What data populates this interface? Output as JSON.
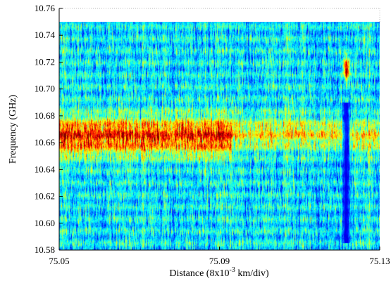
{
  "chart_data": {
    "type": "heatmap",
    "title": "",
    "xlabel": {
      "pre": "Distance (8x10",
      "sup": "-3",
      "post": " km/div)"
    },
    "ylabel": "Frequency (GHz)",
    "xlim": [
      75.05,
      75.13
    ],
    "ylim": [
      10.58,
      10.76
    ],
    "data_ylim": [
      10.58,
      10.75
    ],
    "x_ticks": [
      "75.05",
      "75.09",
      "75.13"
    ],
    "y_ticks": [
      "10.58",
      "10.60",
      "10.62",
      "10.64",
      "10.66",
      "10.68",
      "10.70",
      "10.72",
      "10.74",
      "10.76"
    ],
    "colormap": "jet",
    "colors": {
      "low": "#00008f",
      "mid": "#20c8e8",
      "high": "#ff2000"
    },
    "grid": false,
    "legend": "none",
    "features": [
      {
        "name": "brillouin gain band",
        "x_range": [
          75.05,
          75.093
        ],
        "center_freq": 10.665,
        "width": 0.014,
        "intensity": 0.78
      },
      {
        "name": "brillouin gain band (weaker)",
        "x_range": [
          75.093,
          75.122
        ],
        "center_freq": 10.667,
        "width": 0.012,
        "intensity": 0.58
      },
      {
        "name": "brillouin gain band (after hotspot)",
        "x_range": [
          75.1225,
          75.13
        ],
        "center_freq": 10.665,
        "width": 0.012,
        "intensity": 0.58
      },
      {
        "name": "shifted peak (hotspot)",
        "x_center": 75.1218,
        "x_halfwidth": 0.0007,
        "center_freq": 10.715,
        "width": 0.008,
        "intensity": 0.98
      },
      {
        "name": "depleted region at hotspot",
        "x_center": 75.1217,
        "x_halfwidth": 0.0009,
        "freq_range": [
          10.585,
          10.69
        ],
        "intensity": 0.05
      }
    ]
  }
}
